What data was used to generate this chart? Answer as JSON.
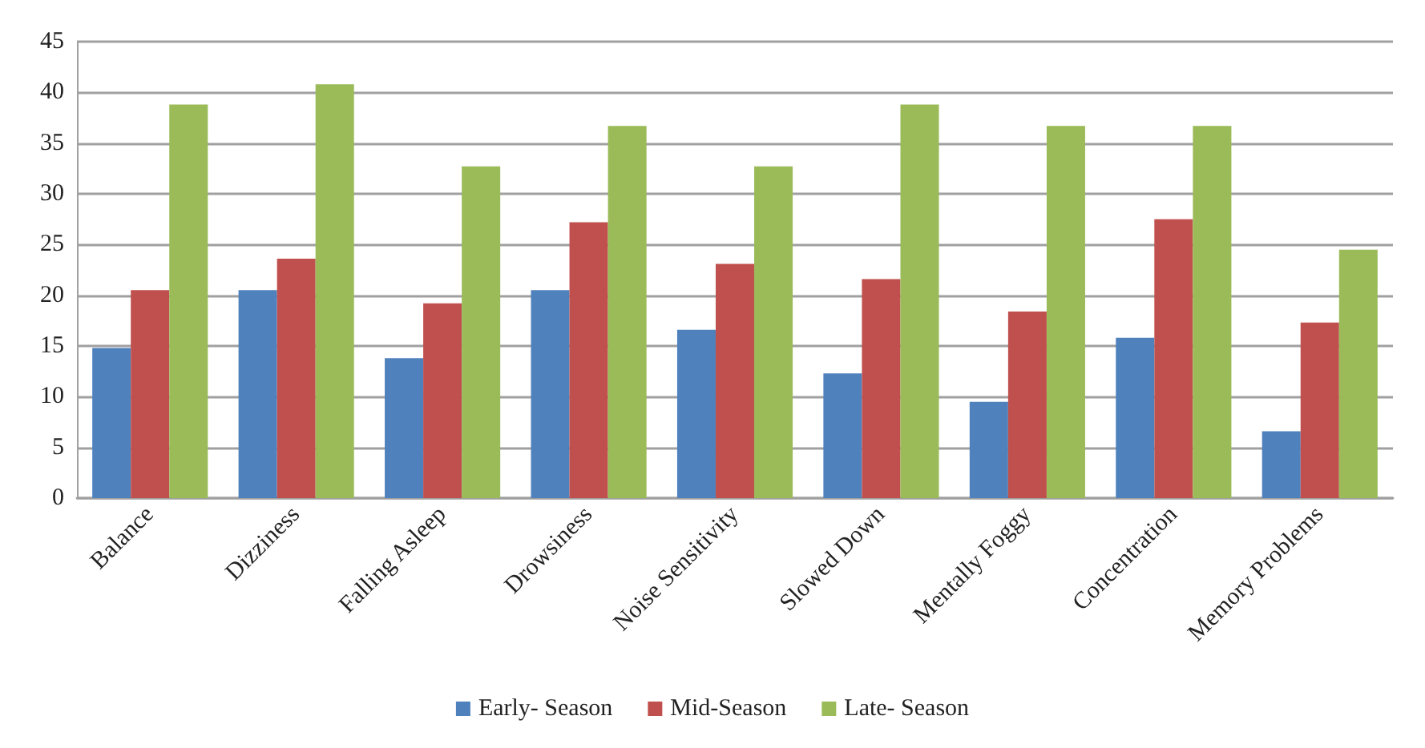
{
  "chart_data": {
    "type": "bar",
    "categories": [
      "Balance",
      "Dizziness",
      "Falling Asleep",
      "Drowsiness",
      "Noise Sensitivity",
      "Slowed Down",
      "Mentally Foggy",
      "Concentration",
      "Memory Problems"
    ],
    "series": [
      {
        "name": "Early- Season",
        "color": "#4f81bd",
        "values": [
          14.8,
          20.5,
          13.8,
          20.5,
          16.6,
          12.3,
          9.5,
          15.8,
          6.6
        ]
      },
      {
        "name": "Mid-Season",
        "color": "#c0504d",
        "values": [
          20.5,
          23.6,
          19.2,
          27.2,
          23.1,
          21.6,
          18.4,
          27.5,
          17.3
        ]
      },
      {
        "name": "Late- Season",
        "color": "#9bbb59",
        "values": [
          38.8,
          40.8,
          32.7,
          36.7,
          32.7,
          38.8,
          36.7,
          36.7,
          24.5
        ]
      }
    ],
    "ylim": [
      0,
      45
    ],
    "yticks": [
      0,
      5,
      10,
      15,
      20,
      25,
      30,
      35,
      40,
      45
    ],
    "grid": "y",
    "legend": "bottom"
  }
}
